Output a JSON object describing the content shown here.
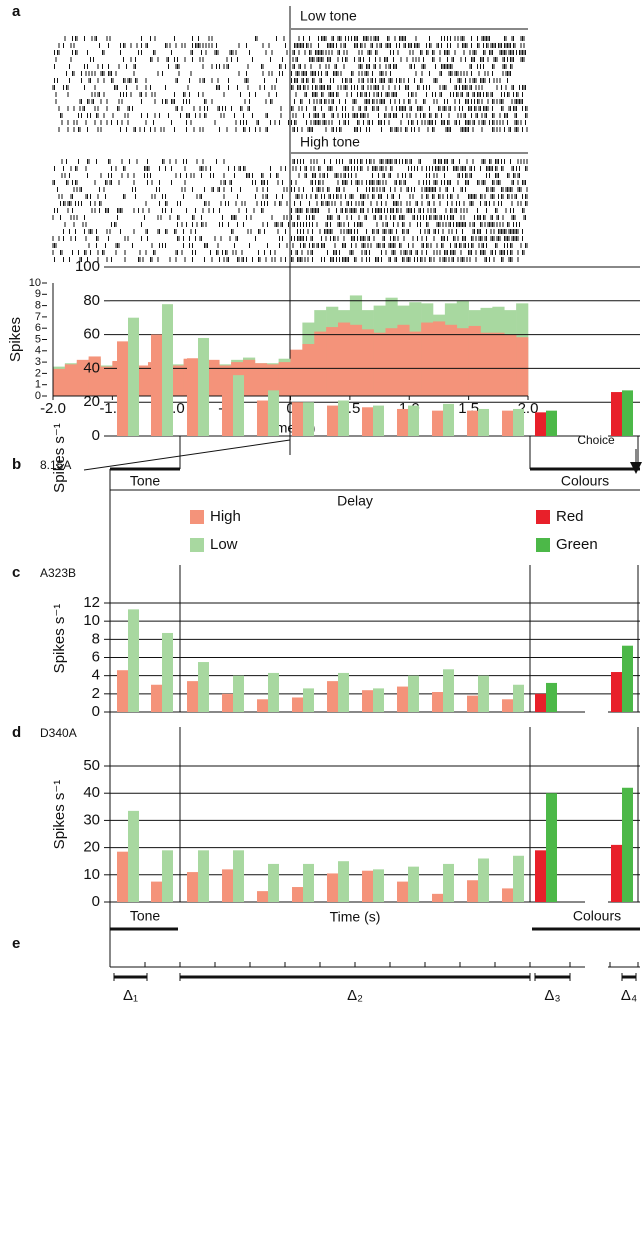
{
  "raster": {
    "labels": [
      "Low tone",
      "High tone"
    ]
  },
  "epochs": [
    "Tone",
    "Delay",
    "Colours"
  ],
  "annotation": "Choice",
  "timeline": {
    "label": "e",
    "title": "Time (s)",
    "intervals": [
      "Δ₁",
      "Δ₂",
      "Δ₃",
      "Δ₄"
    ]
  },
  "chart_data": [
    {
      "type": "histogram",
      "label": "a",
      "xlabel": "Time (s)",
      "ylabel": "Spikes",
      "bins": [
        -2.0,
        -1.9,
        -1.8,
        -1.7,
        -1.6,
        -1.5,
        -1.4,
        -1.3,
        -1.2,
        -1.1,
        -1.0,
        -0.9,
        -0.8,
        -0.7,
        -0.6,
        -0.5,
        -0.4,
        -0.3,
        -0.2,
        -0.1,
        0,
        0.1,
        0.2,
        0.3,
        0.4,
        0.5,
        0.6,
        0.7,
        0.8,
        0.9,
        1.0,
        1.1,
        1.2,
        1.3,
        1.4,
        1.5,
        1.6,
        1.7,
        1.8,
        1.9,
        2.0
      ],
      "series": [
        {
          "color": "#a8d8a0",
          "values": [
            2.6,
            2.9,
            3.0,
            3.3,
            2.7,
            3.0,
            3.0,
            2.6,
            2.9,
            3.3,
            2.8,
            3.2,
            3.1,
            3.0,
            2.8,
            3.2,
            3.4,
            2.9,
            2.9,
            3.3,
            4.0,
            6.5,
            7.6,
            7.9,
            7.6,
            8.9,
            7.6,
            8.0,
            8.7,
            8.0,
            8.3,
            8.2,
            7.2,
            8.2,
            8.4,
            7.6,
            7.8,
            7.9,
            7.6,
            8.2
          ]
        },
        {
          "color": "#f4937a",
          "values": [
            2.4,
            2.8,
            3.2,
            3.5,
            2.6,
            3.1,
            3.0,
            2.7,
            3.0,
            3.2,
            2.7,
            3.3,
            3.0,
            3.2,
            2.7,
            3.0,
            3.2,
            2.9,
            2.8,
            3.0,
            4.1,
            4.6,
            5.7,
            6.1,
            6.5,
            6.3,
            5.9,
            5.6,
            6.0,
            6.3,
            5.7,
            6.5,
            6.6,
            6.3,
            6.0,
            6.2,
            5.6,
            5.6,
            5.4,
            5.2
          ]
        }
      ],
      "xlim": [
        -2,
        2
      ],
      "ylim": [
        0,
        10
      ],
      "xticks": [
        {
          "value": -2,
          "label": "-2.0"
        },
        -1.5,
        {
          "value": -1,
          "label": "-1.0"
        },
        -0.5,
        0,
        0.5,
        {
          "value": 1,
          "label": "1.0"
        },
        1.5,
        {
          "value": 2,
          "label": "2.0"
        }
      ],
      "yticks": [
        0,
        1,
        2,
        3,
        4,
        5,
        6,
        7,
        8,
        9,
        10
      ]
    },
    {
      "type": "bar",
      "label": "b",
      "title": "8.15A",
      "ylabel": "Spikes s⁻¹",
      "legend": true,
      "ylim": [
        0,
        100
      ],
      "yticks": [
        0,
        20,
        40,
        60,
        80,
        100
      ],
      "series": [
        {
          "name": "High",
          "color": "#f4937a",
          "values": [
            56,
            60,
            46,
            26,
            21,
            20,
            18,
            17,
            16,
            15,
            15,
            15
          ]
        },
        {
          "name": "Low",
          "color": "#a8d8a0",
          "values": [
            70,
            78,
            58,
            36,
            27,
            20,
            21,
            18,
            18,
            19,
            16,
            16
          ]
        },
        {
          "name": "Red",
          "color": "#e8202a",
          "values": [
            14,
            26
          ]
        },
        {
          "name": "Green",
          "color": "#4cb848",
          "values": [
            15,
            27
          ]
        }
      ]
    },
    {
      "type": "bar",
      "label": "c",
      "title": "A323B",
      "ylabel": "Spikes s⁻¹",
      "legend": false,
      "ylim": [
        0,
        12
      ],
      "yticks": [
        0,
        2,
        4,
        6,
        8,
        10,
        12
      ],
      "series": [
        {
          "color": "#f4937a",
          "values": [
            4.6,
            3.0,
            3.4,
            2.0,
            1.4,
            1.6,
            3.4,
            2.4,
            2.8,
            2.2,
            1.8,
            1.4
          ]
        },
        {
          "color": "#a8d8a0",
          "values": [
            11.3,
            8.7,
            5.5,
            4.0,
            4.3,
            2.6,
            4.3,
            2.6,
            4.0,
            4.7,
            4.0,
            3.0
          ]
        },
        {
          "color": "#e8202a",
          "values": [
            2.0,
            4.4
          ]
        },
        {
          "color": "#4cb848",
          "values": [
            3.2,
            7.3
          ]
        }
      ]
    },
    {
      "type": "bar",
      "label": "d",
      "title": "D340A",
      "ylabel": "Spikes s⁻¹",
      "legend": false,
      "ylim": [
        0,
        50
      ],
      "yticks": [
        0,
        10,
        20,
        30,
        40,
        50
      ],
      "series": [
        {
          "color": "#f4937a",
          "values": [
            18.5,
            7.5,
            11,
            12,
            4,
            5.5,
            10.5,
            11.5,
            7.5,
            3,
            8,
            5
          ]
        },
        {
          "color": "#a8d8a0",
          "values": [
            33.5,
            19,
            19,
            19,
            14,
            14,
            15,
            12,
            13,
            14,
            16,
            17
          ]
        },
        {
          "color": "#e8202a",
          "values": [
            19,
            21
          ]
        },
        {
          "color": "#4cb848",
          "values": [
            40,
            42
          ]
        }
      ]
    }
  ]
}
